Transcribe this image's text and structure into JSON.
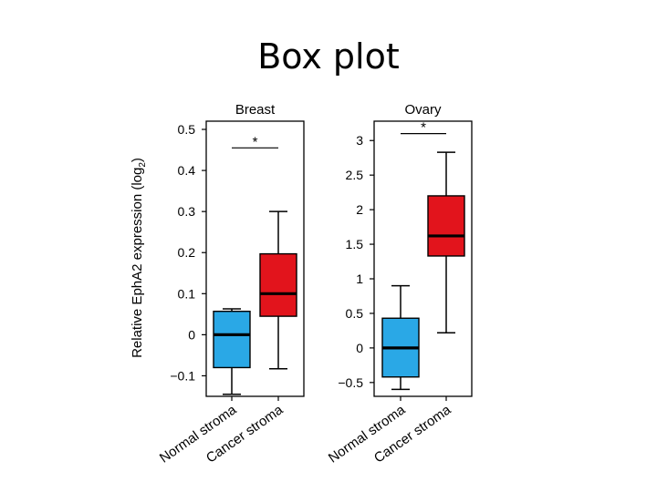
{
  "slide": {
    "title": "Box plot"
  },
  "chart_data": {
    "type": "box",
    "ylabel": "Relative EphA2 expression (log2)",
    "ylabel_main": "Relative EphA2 expression (log",
    "ylabel_sub": "2",
    "ylabel_end": ")",
    "categories": [
      "Normal stroma",
      "Cancer stroma"
    ],
    "colors": {
      "Normal stroma": "#2aa8e6",
      "Cancer stroma": "#e2141c"
    },
    "panels": [
      {
        "title": "Breast",
        "ylim": [
          -0.15,
          0.52
        ],
        "yticks": [
          -0.1,
          0,
          0.1,
          0.2,
          0.3,
          0.4,
          0.5
        ],
        "ytick_labels": [
          "−0.1",
          "0",
          "0.1",
          "0.2",
          "0.3",
          "0.4",
          "0.5"
        ],
        "significance": "*",
        "sig_level": 0.455,
        "boxes": [
          {
            "category": "Normal stroma",
            "whisker_low": -0.145,
            "q1": -0.08,
            "median": 0.0,
            "q3": 0.057,
            "whisker_high": 0.063
          },
          {
            "category": "Cancer stroma",
            "whisker_low": -0.083,
            "q1": 0.045,
            "median": 0.1,
            "q3": 0.197,
            "whisker_high": 0.3
          }
        ]
      },
      {
        "title": "Ovary",
        "ylim": [
          -0.7,
          3.28
        ],
        "yticks": [
          -0.5,
          0,
          0.5,
          1,
          1.5,
          2,
          2.5,
          3
        ],
        "ytick_labels": [
          "−0.5",
          "0",
          "0.5",
          "1",
          "1.5",
          "2",
          "2.5",
          "3"
        ],
        "significance": "*",
        "sig_level": 3.1,
        "boxes": [
          {
            "category": "Normal stroma",
            "whisker_low": -0.6,
            "q1": -0.42,
            "median": 0.0,
            "q3": 0.43,
            "whisker_high": 0.9
          },
          {
            "category": "Cancer stroma",
            "whisker_low": 0.22,
            "q1": 1.33,
            "median": 1.62,
            "q3": 2.2,
            "whisker_high": 2.83
          }
        ]
      }
    ]
  }
}
